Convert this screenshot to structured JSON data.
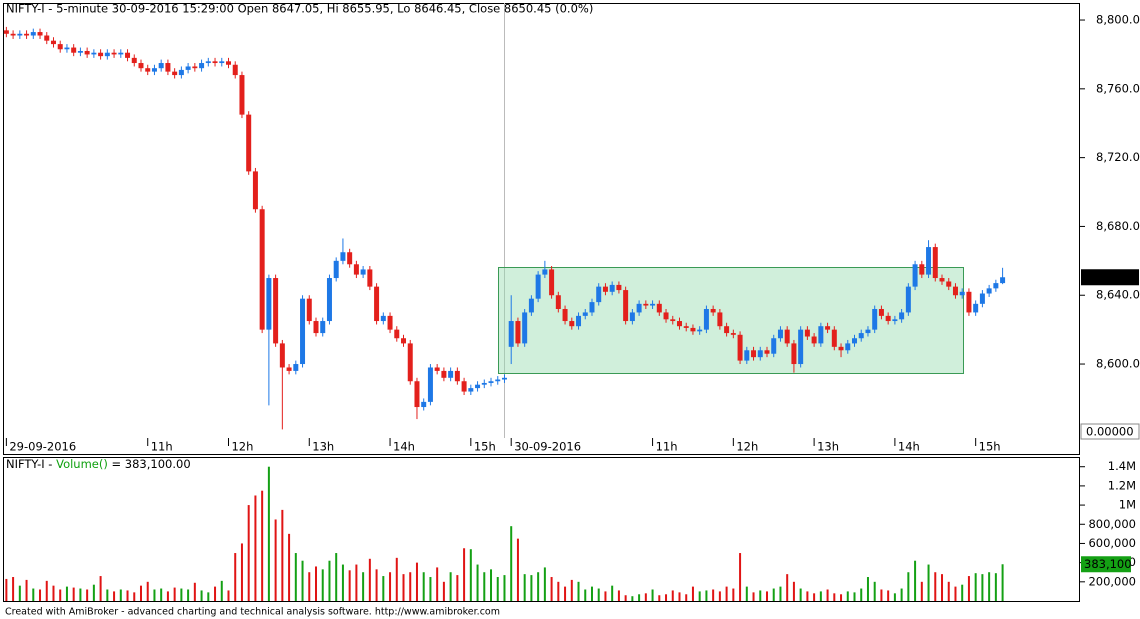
{
  "chart_data": [
    {
      "type": "candlestick",
      "title": "NIFTY-I - 5-minute 30-09-2016 15:29:00 Open 8647.05, Hi 8655.95, Lo 8646.45, Close 8650.45 (0.0%)",
      "up_color": "#1e78e6",
      "down_color": "#e3201c",
      "xlim": [
        -0.5,
        159.5
      ],
      "xticks": [
        {
          "value": 0,
          "label": "29-09-2016"
        },
        {
          "value": 21,
          "label": "11h"
        },
        {
          "value": 33,
          "label": "12h"
        },
        {
          "value": 45,
          "label": "13h"
        },
        {
          "value": 57,
          "label": "14h"
        },
        {
          "value": 69,
          "label": "15h"
        },
        {
          "value": 75,
          "label": "30-09-2016"
        },
        {
          "value": 96,
          "label": "11h"
        },
        {
          "value": 108,
          "label": "12h"
        },
        {
          "value": 120,
          "label": "13h"
        },
        {
          "value": 132,
          "label": "14h"
        },
        {
          "value": 144,
          "label": "15h"
        }
      ],
      "ylim": [
        8557,
        8809.9
      ],
      "yticks": [
        {
          "value": 8600,
          "label": "8,600.0"
        },
        {
          "value": 8640,
          "label": "8,640.0"
        },
        {
          "value": 8680,
          "label": "8,680.0"
        },
        {
          "value": 8720,
          "label": "8,720.0"
        },
        {
          "value": 8760,
          "label": "8,760.0"
        },
        {
          "value": 8800,
          "label": "8,800.0"
        }
      ],
      "last_label": {
        "value": 8650.45,
        "label": "8,650.45"
      },
      "bottom_label": "0.00000",
      "open": [
        8794,
        8792,
        8791,
        8792,
        8791,
        8793,
        8791,
        8788,
        8786,
        8783,
        8784,
        8781,
        8782,
        8780,
        8781,
        8779,
        8781,
        8780,
        8781,
        8778,
        8775,
        8772,
        8770,
        8772,
        8775,
        8770,
        8768,
        8771,
        8773,
        8772,
        8775,
        8776,
        8775,
        8776,
        8774,
        8768,
        8745,
        8712,
        8690,
        8620,
        8650,
        8612,
        8598,
        8596,
        8600,
        8638,
        8625,
        8618,
        8625,
        8650,
        8660,
        8665,
        8658,
        8652,
        8655,
        8645,
        8625,
        8628,
        8620,
        8615,
        8612,
        8590,
        8575,
        8578,
        8598,
        8596,
        8592,
        8596,
        8590,
        8584,
        8586,
        8588,
        8589,
        8590,
        8591,
        8610,
        8625,
        8612,
        8630,
        8638,
        8652,
        8655,
        8640,
        8632,
        8625,
        8622,
        8628,
        8630,
        8636,
        8645,
        8642,
        8646,
        8643,
        8625,
        8630,
        8635,
        8634,
        8635,
        8630,
        8626,
        8625,
        8622,
        8621,
        8619,
        8620,
        8632,
        8630,
        8622,
        8618,
        8617,
        8602,
        8608,
        8604,
        8608,
        8606,
        8615,
        8620,
        8612,
        8600,
        8620,
        8616,
        8612,
        8622,
        8620,
        8610,
        8608,
        8612,
        8615,
        8618,
        8620,
        8632,
        8628,
        8625,
        8626,
        8630,
        8645,
        8658,
        8652,
        8668,
        8650,
        8648,
        8645,
        8640,
        8642,
        8630,
        8635,
        8641,
        8644,
        8647.05
      ],
      "high": [
        8796,
        8794,
        8794,
        8794,
        8795,
        8795,
        8793,
        8790,
        8788,
        8786,
        8786,
        8784,
        8784,
        8783,
        8783,
        8783,
        8783,
        8783,
        8783,
        8780,
        8777,
        8774,
        8774,
        8777,
        8777,
        8772,
        8773,
        8775,
        8775,
        8777,
        8778,
        8778,
        8778,
        8778,
        8776,
        8770,
        8747,
        8714,
        8692,
        8652,
        8652,
        8614,
        8600,
        8602,
        8640,
        8640,
        8627,
        8627,
        8652,
        8662,
        8673,
        8667,
        8660,
        8657,
        8657,
        8647,
        8630,
        8630,
        8622,
        8617,
        8614,
        8592,
        8580,
        8600,
        8600,
        8598,
        8598,
        8598,
        8592,
        8588,
        8590,
        8591,
        8592,
        8593,
        8594,
        8640,
        8627,
        8632,
        8640,
        8654,
        8660,
        8657,
        8642,
        8634,
        8627,
        8630,
        8632,
        8638,
        8647,
        8647,
        8648,
        8648,
        8645,
        8632,
        8637,
        8637,
        8637,
        8637,
        8632,
        8628,
        8627,
        8624,
        8623,
        8622,
        8634,
        8634,
        8632,
        8624,
        8620,
        8619,
        8610,
        8610,
        8610,
        8610,
        8617,
        8622,
        8622,
        8614,
        8622,
        8622,
        8618,
        8624,
        8624,
        8622,
        8612,
        8614,
        8617,
        8620,
        8622,
        8634,
        8634,
        8630,
        8628,
        8632,
        8647,
        8660,
        8660,
        8672,
        8670,
        8652,
        8650,
        8647,
        8644,
        8644,
        8637,
        8643,
        8646,
        8649,
        8655.95
      ],
      "low": [
        8790,
        8789,
        8789,
        8789,
        8789,
        8789,
        8786,
        8784,
        8781,
        8781,
        8779,
        8779,
        8778,
        8778,
        8777,
        8777,
        8778,
        8778,
        8776,
        8773,
        8770,
        8768,
        8768,
        8770,
        8768,
        8766,
        8766,
        8769,
        8770,
        8770,
        8773,
        8773,
        8773,
        8772,
        8766,
        8743,
        8710,
        8688,
        8618,
        8576,
        8610,
        8562,
        8594,
        8594,
        8598,
        8623,
        8616,
        8616,
        8623,
        8648,
        8658,
        8656,
        8650,
        8650,
        8643,
        8623,
        8623,
        8618,
        8613,
        8610,
        8588,
        8568,
        8573,
        8576,
        8594,
        8590,
        8590,
        8588,
        8582,
        8582,
        8584,
        8586,
        8587,
        8588,
        8589,
        8600,
        8610,
        8610,
        8628,
        8636,
        8650,
        8638,
        8630,
        8623,
        8620,
        8620,
        8626,
        8628,
        8634,
        8640,
        8640,
        8641,
        8623,
        8623,
        8628,
        8632,
        8632,
        8628,
        8624,
        8623,
        8620,
        8619,
        8617,
        8617,
        8618,
        8628,
        8620,
        8616,
        8615,
        8600,
        8600,
        8602,
        8602,
        8604,
        8604,
        8613,
        8610,
        8595,
        8598,
        8614,
        8610,
        8610,
        8618,
        8608,
        8604,
        8606,
        8610,
        8613,
        8616,
        8618,
        8626,
        8623,
        8623,
        8624,
        8628,
        8643,
        8650,
        8650,
        8648,
        8646,
        8643,
        8638,
        8638,
        8628,
        8628,
        8633,
        8639,
        8642,
        8646.45
      ],
      "close": [
        8792,
        8791,
        8792,
        8791,
        8793,
        8791,
        8788,
        8786,
        8783,
        8784,
        8781,
        8782,
        8780,
        8781,
        8779,
        8781,
        8780,
        8781,
        8778,
        8775,
        8772,
        8770,
        8772,
        8775,
        8770,
        8768,
        8771,
        8773,
        8772,
        8775,
        8776,
        8775,
        8776,
        8774,
        8768,
        8745,
        8712,
        8690,
        8620,
        8650,
        8612,
        8598,
        8596,
        8600,
        8638,
        8625,
        8618,
        8625,
        8650,
        8660,
        8665,
        8658,
        8652,
        8655,
        8645,
        8625,
        8628,
        8620,
        8615,
        8612,
        8590,
        8575,
        8578,
        8598,
        8596,
        8592,
        8596,
        8590,
        8584,
        8586,
        8588,
        8589,
        8590,
        8591,
        8592,
        8625,
        8612,
        8630,
        8638,
        8652,
        8655,
        8640,
        8632,
        8625,
        8622,
        8628,
        8630,
        8636,
        8645,
        8642,
        8646,
        8643,
        8625,
        8630,
        8635,
        8634,
        8635,
        8630,
        8626,
        8625,
        8622,
        8621,
        8619,
        8620,
        8632,
        8630,
        8622,
        8618,
        8617,
        8602,
        8608,
        8604,
        8608,
        8606,
        8615,
        8620,
        8612,
        8600,
        8620,
        8616,
        8612,
        8622,
        8620,
        8610,
        8608,
        8612,
        8615,
        8618,
        8620,
        8632,
        8628,
        8625,
        8626,
        8630,
        8645,
        8658,
        8652,
        8668,
        8650,
        8648,
        8645,
        8640,
        8642,
        8630,
        8635,
        8641,
        8644,
        8647.05,
        8650.45
      ]
    },
    {
      "type": "bar",
      "title_prefix": "NIFTY-I - ",
      "title_indicator": "Volume()",
      "title_suffix": " = 383,100.00",
      "indicator_color": "#10a010",
      "up_color": "#14a014",
      "down_color": "#e01414",
      "ylim": [
        0,
        1470000
      ],
      "yticks": [
        {
          "value": 200000,
          "label": "200,000"
        },
        {
          "value": 400000,
          "label": "400,000"
        },
        {
          "value": 600000,
          "label": "600,000"
        },
        {
          "value": 800000,
          "label": "800,000"
        },
        {
          "value": 1000000,
          "label": "1M"
        },
        {
          "value": 1200000,
          "label": "1.2M"
        },
        {
          "value": 1400000,
          "label": "1.4M"
        }
      ],
      "last_label": {
        "value": 383100,
        "label": "383,100"
      },
      "values": [
        230000,
        250000,
        160000,
        220000,
        130000,
        120000,
        210000,
        160000,
        120000,
        150000,
        140000,
        130000,
        120000,
        170000,
        260000,
        120000,
        100000,
        120000,
        110000,
        90000,
        160000,
        200000,
        120000,
        130000,
        100000,
        140000,
        130000,
        120000,
        190000,
        110000,
        90000,
        150000,
        210000,
        110000,
        500000,
        600000,
        1000000,
        1100000,
        1150000,
        1400000,
        850000,
        950000,
        700000,
        500000,
        420000,
        300000,
        360000,
        330000,
        420000,
        500000,
        380000,
        320000,
        380000,
        300000,
        440000,
        330000,
        260000,
        300000,
        450000,
        280000,
        300000,
        400000,
        300000,
        250000,
        350000,
        200000,
        300000,
        270000,
        550000,
        540000,
        380000,
        300000,
        330000,
        250000,
        270000,
        780000,
        650000,
        280000,
        270000,
        300000,
        350000,
        250000,
        200000,
        150000,
        220000,
        200000,
        120000,
        150000,
        130000,
        100000,
        160000,
        110000,
        60000,
        50000,
        70000,
        80000,
        120000,
        60000,
        70000,
        110000,
        90000,
        70000,
        150000,
        100000,
        110000,
        120000,
        100000,
        150000,
        130000,
        500000,
        150000,
        90000,
        110000,
        100000,
        130000,
        150000,
        280000,
        200000,
        130000,
        100000,
        80000,
        100000,
        120000,
        80000,
        70000,
        100000,
        90000,
        130000,
        250000,
        200000,
        120000,
        110000,
        80000,
        130000,
        300000,
        420000,
        200000,
        380000,
        300000,
        280000,
        200000,
        150000,
        170000,
        260000,
        290000,
        280000,
        300000,
        290000,
        383100
      ]
    }
  ],
  "footer": "Created with AmiBroker - advanced charting and technical analysis software. http://www.amibroker.com"
}
